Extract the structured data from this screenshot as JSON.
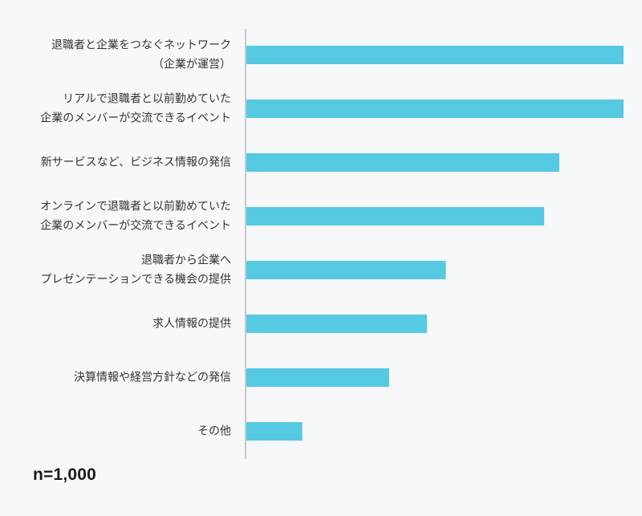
{
  "chart_data": {
    "type": "bar",
    "orientation": "horizontal",
    "categories": [
      [
        "退職者と企業をつなぐネットワーク",
        "（企業が運営）"
      ],
      [
        "リアルで退職者と以前勤めていた",
        "企業のメンバーが交流できるイベント"
      ],
      [
        "新サービスなど、ビジネス情報の発信"
      ],
      [
        "オンラインで退職者と以前勤めていた",
        "企業のメンバーが交流できるイベント"
      ],
      [
        "退職者から企業へ",
        "プレゼンテーションできる機会の提供"
      ],
      [
        "求人情報の提供"
      ],
      [
        "決算情報や経営方針などの発信"
      ],
      [
        "その他"
      ]
    ],
    "values": [
      100,
      100,
      83,
      79,
      53,
      48,
      38,
      15
    ],
    "xlim": [
      0,
      100
    ],
    "bar_color": "#56c9e3",
    "axis_color": "#999999",
    "grid": false,
    "legend": "none"
  },
  "footnote": "n=1,000"
}
